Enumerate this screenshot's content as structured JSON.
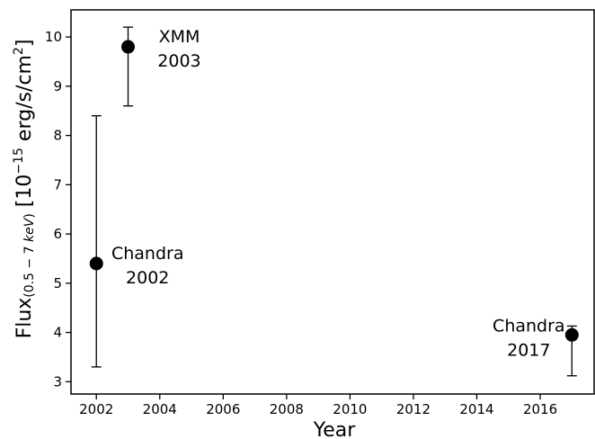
{
  "chart_data": {
    "type": "scatter",
    "xlabel": "Year",
    "ylabel": {
      "main": "Flux",
      "subscript_open": "(0.5 − 7 ",
      "subscript_unit": "keV",
      "subscript_close": ")",
      "bracket_open": " [10",
      "exponent": "−15",
      "units": " erg/s/cm",
      "units_power": "2",
      "bracket_close": "]"
    },
    "xlim": [
      2001.2,
      2017.7
    ],
    "ylim": [
      2.75,
      10.55
    ],
    "xticks": [
      2002,
      2004,
      2006,
      2008,
      2010,
      2012,
      2014,
      2016
    ],
    "yticks": [
      3,
      4,
      5,
      6,
      7,
      8,
      9,
      10
    ],
    "grid": false,
    "points": [
      {
        "x": 2002,
        "y": 5.4,
        "err_low": 3.3,
        "err_high": 8.4,
        "label_line1": "Chandra",
        "label_line2": "2002"
      },
      {
        "x": 2003,
        "y": 9.8,
        "err_low": 8.6,
        "err_high": 10.2,
        "label_line1": "XMM",
        "label_line2": "2003"
      },
      {
        "x": 2017,
        "y": 3.95,
        "err_low": 3.12,
        "err_high": 4.13,
        "label_line1": "Chandra",
        "label_line2": "2017"
      }
    ]
  }
}
